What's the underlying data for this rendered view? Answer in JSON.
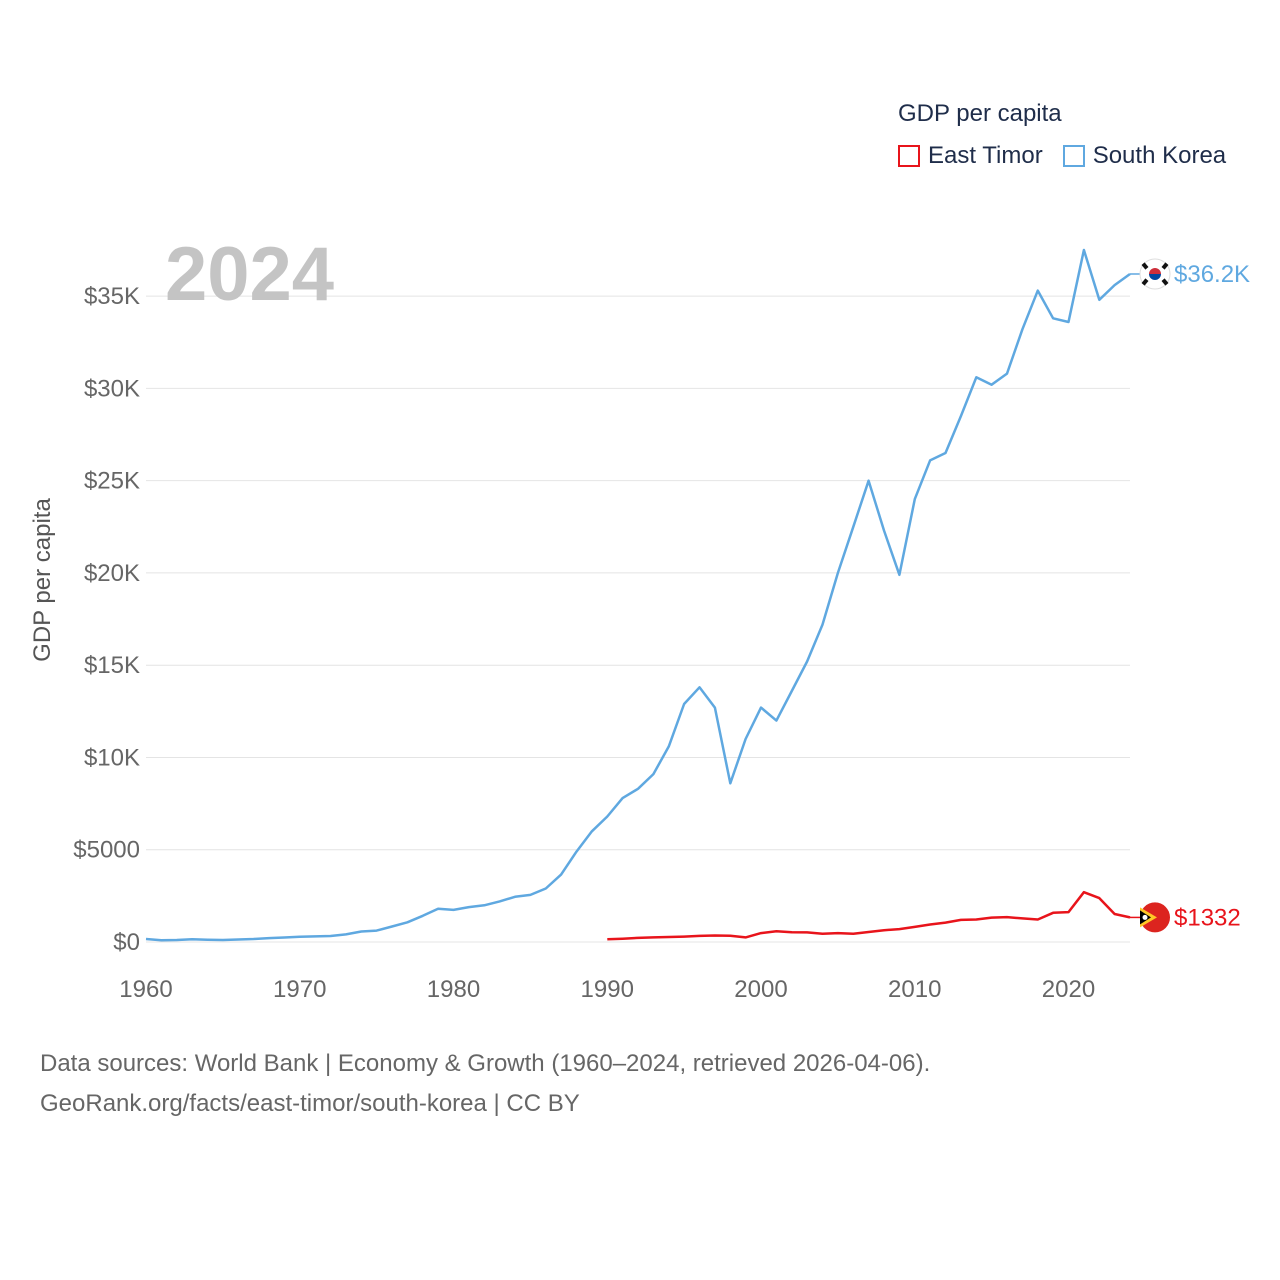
{
  "chart_data": {
    "type": "line",
    "title": "GDP per capita",
    "year_label": "2024",
    "ylabel": "GDP per capita",
    "xlabel": "",
    "xlim": [
      1960,
      2024
    ],
    "ylim": [
      0,
      37500
    ],
    "x_ticks": [
      1960,
      1970,
      1980,
      1990,
      2000,
      2010,
      2020
    ],
    "y_ticks": [
      {
        "value": 0,
        "label": "$0"
      },
      {
        "value": 5000,
        "label": "$5000"
      },
      {
        "value": 10000,
        "label": "$10K"
      },
      {
        "value": 15000,
        "label": "$15K"
      },
      {
        "value": 20000,
        "label": "$20K"
      },
      {
        "value": 25000,
        "label": "$25K"
      },
      {
        "value": 30000,
        "label": "$30K"
      },
      {
        "value": 35000,
        "label": "$35K"
      }
    ],
    "series": [
      {
        "name": "East Timor",
        "color": "#e8141b",
        "end_label": "$1332",
        "flag_icon": "east-timor-flag-icon",
        "x": [
          1990,
          1991,
          1992,
          1993,
          1994,
          1995,
          1996,
          1997,
          1998,
          1999,
          2000,
          2001,
          2002,
          2003,
          2004,
          2005,
          2006,
          2007,
          2008,
          2009,
          2010,
          2011,
          2012,
          2013,
          2014,
          2015,
          2016,
          2017,
          2018,
          2019,
          2020,
          2021,
          2022,
          2023,
          2024
        ],
        "values": [
          150,
          180,
          220,
          250,
          270,
          290,
          330,
          350,
          340,
          250,
          480,
          580,
          530,
          520,
          450,
          480,
          450,
          540,
          640,
          700,
          820,
          950,
          1050,
          1200,
          1220,
          1320,
          1350,
          1280,
          1220,
          1580,
          1620,
          2700,
          2380,
          1520,
          1332
        ]
      },
      {
        "name": "South Korea",
        "color": "#5fa8e0",
        "end_label": "$36.2K",
        "flag_icon": "south-korea-flag-icon",
        "x": [
          1960,
          1961,
          1962,
          1963,
          1964,
          1965,
          1966,
          1967,
          1968,
          1969,
          1970,
          1971,
          1972,
          1973,
          1974,
          1975,
          1976,
          1977,
          1978,
          1979,
          1980,
          1981,
          1982,
          1983,
          1984,
          1985,
          1986,
          1987,
          1988,
          1989,
          1990,
          1991,
          1992,
          1993,
          1994,
          1995,
          1996,
          1997,
          1998,
          1999,
          2000,
          2001,
          2002,
          2003,
          2004,
          2005,
          2006,
          2007,
          2008,
          2009,
          2010,
          2011,
          2012,
          2013,
          2014,
          2015,
          2016,
          2017,
          2018,
          2019,
          2020,
          2021,
          2022,
          2023,
          2024
        ],
        "values": [
          160,
          95,
          110,
          145,
          120,
          110,
          135,
          165,
          210,
          245,
          280,
          305,
          325,
          410,
          570,
          620,
          840,
          1070,
          1420,
          1800,
          1740,
          1890,
          1990,
          2200,
          2450,
          2550,
          2900,
          3650,
          4900,
          6000,
          6800,
          7800,
          8300,
          9100,
          10600,
          12900,
          13800,
          12700,
          8600,
          11000,
          12700,
          12000,
          13600,
          15200,
          17200,
          20000,
          22500,
          25000,
          22300,
          19900,
          24000,
          26100,
          26500,
          28500,
          30600,
          30200,
          30800,
          33200,
          35300,
          33800,
          33600,
          37500,
          34800,
          35600,
          36200
        ]
      }
    ]
  },
  "legend": {
    "title": "GDP per capita",
    "items": [
      {
        "label": "East Timor",
        "color": "#e8141b"
      },
      {
        "label": "South Korea",
        "color": "#5fa8e0"
      }
    ]
  },
  "footer": {
    "line1": "Data sources: World Bank | Economy & Growth (1960–2024, retrieved 2026-04-06).",
    "line2": "GeoRank.org/facts/east-timor/south-korea | CC BY"
  }
}
